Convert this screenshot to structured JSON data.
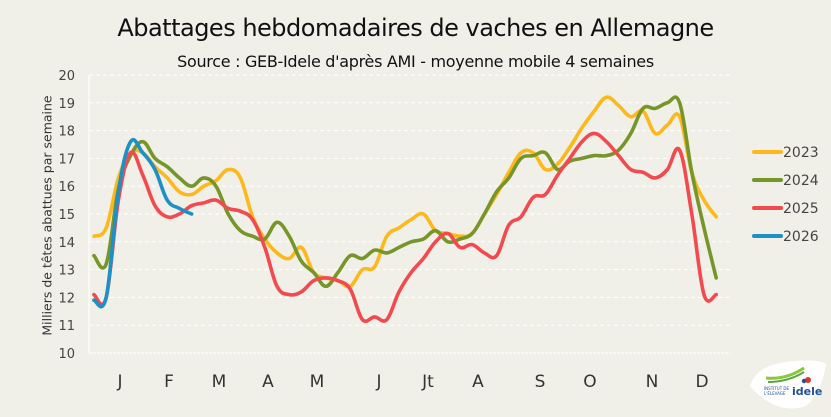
{
  "header": {
    "title": "Abattages hebdomadaires de vaches en Allemagne",
    "subtitle": "Source : GEB-Idele d'après AMI - moyenne mobile 4 semaines"
  },
  "logo": {
    "line1": "INSTITUT DE",
    "line2": "L'ÉLEVAGE",
    "brand": "idele"
  },
  "chart_data": {
    "type": "line",
    "title": "Abattages hebdomadaires de vaches en Allemagne",
    "subtitle": "Source : GEB-Idele d'après AMI - moyenne mobile 4 semaines",
    "xlabel": "",
    "ylabel": "Milliers de têtes abattues par semaine",
    "ylim": [
      10,
      20
    ],
    "yticks": [
      10,
      11,
      12,
      13,
      14,
      15,
      16,
      17,
      18,
      19,
      20
    ],
    "grid": true,
    "legend_position": "right",
    "x_tick_labels": [
      "J",
      "F",
      "M",
      "A",
      "M",
      "J",
      "Jt",
      "A",
      "S",
      "O",
      "N",
      "D"
    ],
    "x": "week 1..52",
    "series": [
      {
        "name": "2023",
        "color": "#ffb81c",
        "values": [
          14.2,
          14.5,
          16.3,
          17.2,
          17.2,
          16.7,
          16.3,
          15.8,
          15.7,
          16.0,
          16.2,
          16.6,
          16.3,
          14.9,
          14.1,
          13.6,
          13.4,
          13.8,
          12.9,
          12.7,
          12.6,
          12.4,
          13.0,
          13.1,
          14.2,
          14.5,
          14.8,
          15.0,
          14.4,
          14.3,
          14.2,
          14.3,
          15.0,
          15.7,
          16.5,
          17.2,
          17.2,
          16.6,
          16.8,
          17.4,
          18.1,
          18.7,
          19.2,
          18.9,
          18.5,
          18.7,
          17.9,
          18.2,
          18.5,
          16.5,
          15.5,
          14.9
        ]
      },
      {
        "name": "2024",
        "color": "#76962a",
        "values": [
          13.5,
          13.2,
          15.9,
          17.1,
          17.6,
          17.0,
          16.7,
          16.3,
          16.0,
          16.3,
          16.0,
          15.0,
          14.4,
          14.2,
          14.1,
          14.7,
          14.2,
          13.3,
          12.9,
          12.4,
          12.9,
          13.5,
          13.4,
          13.7,
          13.6,
          13.8,
          14.0,
          14.1,
          14.4,
          14.0,
          14.1,
          14.3,
          15.0,
          15.8,
          16.3,
          17.0,
          17.1,
          17.2,
          16.6,
          16.9,
          17.0,
          17.1,
          17.1,
          17.3,
          17.9,
          18.8,
          18.8,
          19.0,
          19.0,
          16.5,
          14.5,
          12.7
        ]
      },
      {
        "name": "2025",
        "color": "#f24a4f",
        "values": [
          12.1,
          12.0,
          15.5,
          17.2,
          16.4,
          15.3,
          14.9,
          15.0,
          15.3,
          15.4,
          15.5,
          15.2,
          15.1,
          14.8,
          13.8,
          12.4,
          12.1,
          12.2,
          12.6,
          12.7,
          12.6,
          12.3,
          11.2,
          11.3,
          11.2,
          12.2,
          12.9,
          13.4,
          14.0,
          14.3,
          13.8,
          13.9,
          13.6,
          13.5,
          14.6,
          14.9,
          15.6,
          15.7,
          16.4,
          17.0,
          17.6,
          17.9,
          17.6,
          17.1,
          16.6,
          16.5,
          16.3,
          16.6,
          17.3,
          15.0,
          12.1,
          12.1
        ]
      },
      {
        "name": "2026",
        "color": "#1e90c8",
        "values": [
          11.9,
          12.0,
          15.8,
          17.6,
          17.2,
          16.6,
          15.5,
          15.2,
          15.0
        ]
      }
    ]
  }
}
